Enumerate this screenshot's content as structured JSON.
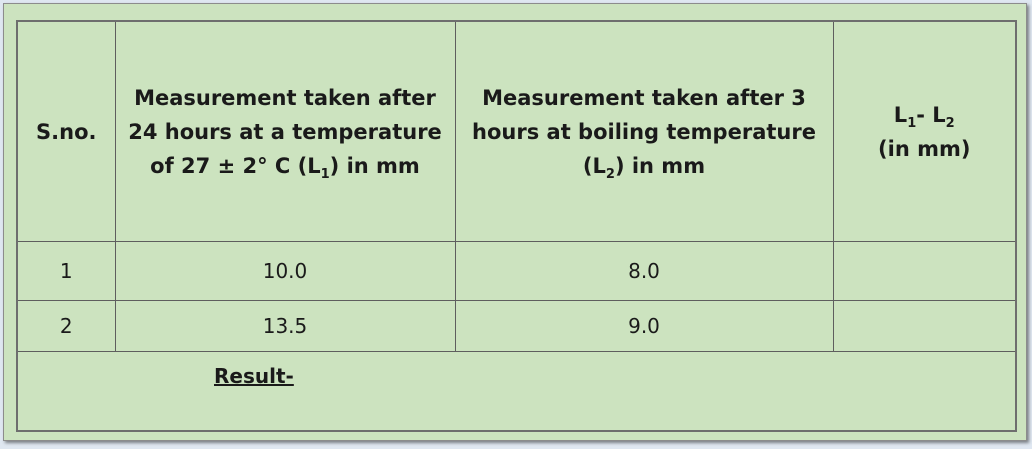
{
  "table": {
    "headers": {
      "sno": "S.no.",
      "l1": {
        "line1": "Measurement taken after",
        "line2": "24 hours at a temperature",
        "line3_pre": "of 27 ± 2° C (L",
        "line3_sub": "1",
        "line3_post": ") in mm"
      },
      "l2": {
        "line1": "Measurement taken after 3",
        "line2": "hours at boiling temperature",
        "line3_pre": "(L",
        "line3_sub": "2",
        "line3_post": ") in mm"
      },
      "diff": {
        "a": "L",
        "a_sub": "1",
        "mid": "- L",
        "b_sub": "2",
        "line2": "(in mm)"
      }
    },
    "rows": [
      {
        "sno": "1",
        "l1": "10.0",
        "l2": "8.0",
        "diff": ""
      },
      {
        "sno": "2",
        "l1": "13.5",
        "l2": "9.0",
        "diff": ""
      }
    ],
    "result_label": "Result-"
  }
}
